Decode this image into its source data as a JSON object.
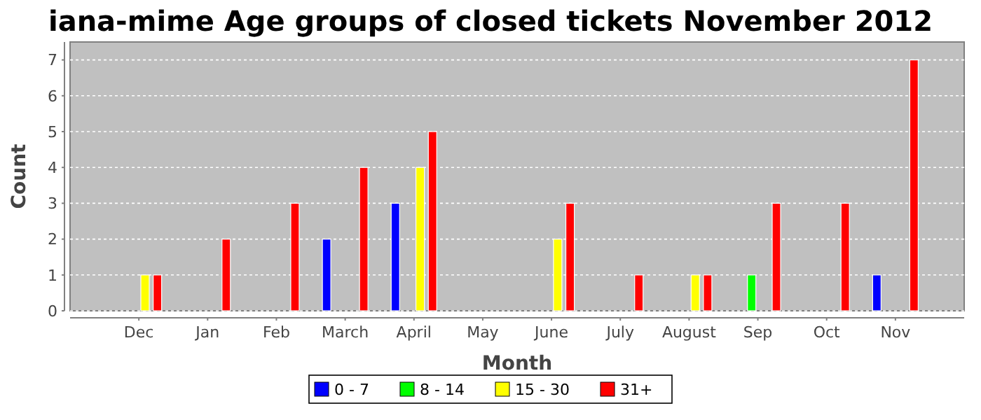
{
  "chart_data": {
    "type": "bar",
    "title": "iana-mime Age groups of closed tickets November 2012",
    "xlabel": "Month",
    "ylabel": "Count",
    "categories": [
      "Dec",
      "Jan",
      "Feb",
      "March",
      "April",
      "May",
      "June",
      "July",
      "August",
      "Sep",
      "Oct",
      "Nov"
    ],
    "series": [
      {
        "name": "0 - 7",
        "color": "#0000ff",
        "values": [
          0,
          0,
          0,
          2,
          3,
          0,
          0,
          0,
          0,
          0,
          0,
          1
        ]
      },
      {
        "name": "8 - 14",
        "color": "#00ff00",
        "values": [
          0,
          0,
          0,
          0,
          0,
          0,
          0,
          0,
          0,
          1,
          0,
          0
        ]
      },
      {
        "name": "15 - 30",
        "color": "#ffff00",
        "values": [
          1,
          0,
          0,
          0,
          4,
          0,
          2,
          0,
          1,
          0,
          0,
          0
        ]
      },
      {
        "name": "31+",
        "color": "#ff0000",
        "values": [
          1,
          2,
          3,
          4,
          5,
          0,
          3,
          1,
          1,
          3,
          3,
          7
        ]
      }
    ],
    "ylim": [
      0,
      7.5
    ],
    "yticks": [
      0,
      1,
      2,
      3,
      4,
      5,
      6,
      7
    ],
    "grid": "y",
    "legend": "bottom"
  }
}
